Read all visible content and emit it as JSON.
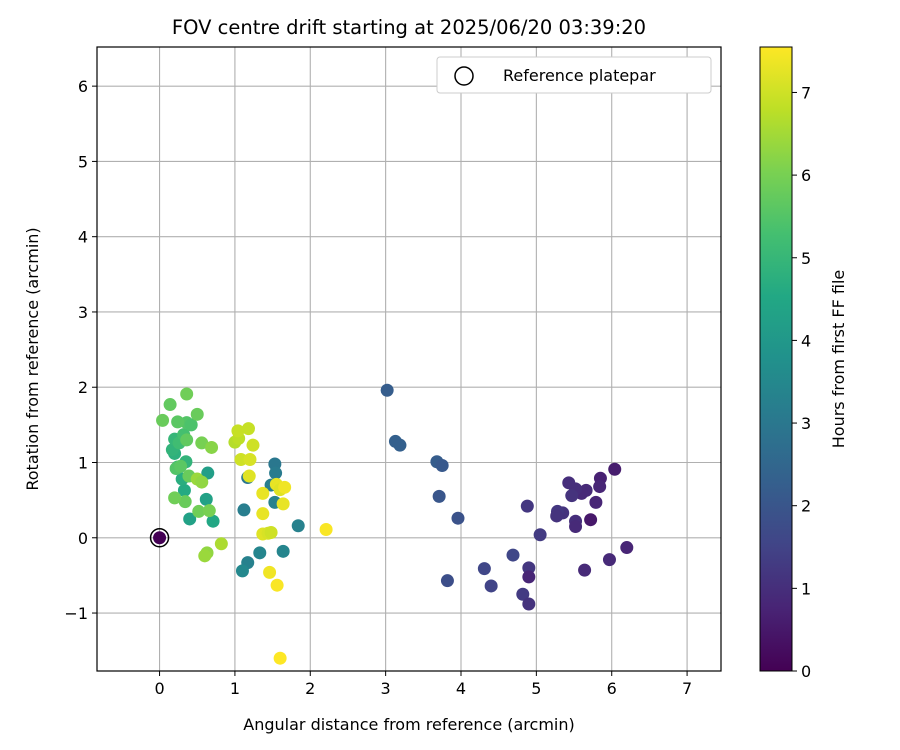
{
  "chart_data": {
    "type": "scatter",
    "title": "FOV centre drift starting at 2025/06/20 03:39:20",
    "xlabel": "Angular distance from reference (arcmin)",
    "ylabel": "Rotation from reference (arcmin)",
    "xlim": [
      -0.83,
      7.45
    ],
    "ylim": [
      -1.77,
      6.52
    ],
    "xticks": [
      0,
      1,
      2,
      3,
      4,
      5,
      6,
      7
    ],
    "yticks": [
      -1,
      0,
      1,
      2,
      3,
      4,
      5,
      6
    ],
    "grid": true,
    "legend": {
      "position": "upper-right",
      "entries": [
        "Reference platepar"
      ]
    },
    "reference_point": {
      "x": 0,
      "y": 0,
      "label": "Reference platepar"
    },
    "colorbar": {
      "label": "Hours from first FF file",
      "min": 0,
      "max": 7.55,
      "ticks": [
        0,
        1,
        2,
        3,
        4,
        5,
        6,
        7
      ],
      "colormap": "viridis"
    },
    "points": [
      {
        "x": 0.0,
        "y": 0.0,
        "c": 0.0
      },
      {
        "x": 6.04,
        "y": 0.91,
        "c": 0.6
      },
      {
        "x": 5.85,
        "y": 0.79,
        "c": 0.7
      },
      {
        "x": 5.84,
        "y": 0.68,
        "c": 0.8
      },
      {
        "x": 5.79,
        "y": 0.47,
        "c": 0.8
      },
      {
        "x": 5.72,
        "y": 0.24,
        "c": 0.5
      },
      {
        "x": 5.66,
        "y": 0.63,
        "c": 0.9
      },
      {
        "x": 5.6,
        "y": 0.59,
        "c": 0.9
      },
      {
        "x": 5.52,
        "y": 0.65,
        "c": 1.0
      },
      {
        "x": 5.47,
        "y": 0.56,
        "c": 1.1
      },
      {
        "x": 5.43,
        "y": 0.73,
        "c": 1.0
      },
      {
        "x": 5.52,
        "y": 0.22,
        "c": 1.0
      },
      {
        "x": 5.52,
        "y": 0.15,
        "c": 0.9
      },
      {
        "x": 5.35,
        "y": 0.33,
        "c": 1.1
      },
      {
        "x": 5.28,
        "y": 0.35,
        "c": 1.2
      },
      {
        "x": 5.27,
        "y": 0.29,
        "c": 1.1
      },
      {
        "x": 4.88,
        "y": 0.42,
        "c": 1.2
      },
      {
        "x": 5.05,
        "y": 0.04,
        "c": 1.3
      },
      {
        "x": 6.2,
        "y": -0.13,
        "c": 0.8
      },
      {
        "x": 5.97,
        "y": -0.29,
        "c": 0.9
      },
      {
        "x": 5.64,
        "y": -0.43,
        "c": 0.9
      },
      {
        "x": 4.9,
        "y": -0.4,
        "c": 1.2
      },
      {
        "x": 4.9,
        "y": -0.52,
        "c": 0.8
      },
      {
        "x": 4.82,
        "y": -0.75,
        "c": 1.3
      },
      {
        "x": 4.9,
        "y": -0.88,
        "c": 1.1
      },
      {
        "x": 4.69,
        "y": -0.23,
        "c": 1.6
      },
      {
        "x": 4.4,
        "y": -0.64,
        "c": 1.5
      },
      {
        "x": 4.31,
        "y": -0.41,
        "c": 1.6
      },
      {
        "x": 3.82,
        "y": -0.57,
        "c": 1.8
      },
      {
        "x": 3.96,
        "y": 0.26,
        "c": 1.9
      },
      {
        "x": 3.71,
        "y": 0.55,
        "c": 2.0
      },
      {
        "x": 3.68,
        "y": 1.01,
        "c": 2.2
      },
      {
        "x": 3.75,
        "y": 0.96,
        "c": 2.1
      },
      {
        "x": 3.13,
        "y": 1.28,
        "c": 2.3
      },
      {
        "x": 3.19,
        "y": 1.23,
        "c": 2.3
      },
      {
        "x": 3.02,
        "y": 1.96,
        "c": 2.2
      },
      {
        "x": 1.84,
        "y": 0.16,
        "c": 3.3
      },
      {
        "x": 1.64,
        "y": -0.18,
        "c": 3.4
      },
      {
        "x": 1.53,
        "y": 0.98,
        "c": 3.0
      },
      {
        "x": 1.54,
        "y": 0.86,
        "c": 3.1
      },
      {
        "x": 1.48,
        "y": 0.7,
        "c": 3.2
      },
      {
        "x": 1.53,
        "y": 0.47,
        "c": 3.3
      },
      {
        "x": 1.12,
        "y": 0.37,
        "c": 3.2
      },
      {
        "x": 1.33,
        "y": -0.2,
        "c": 3.4
      },
      {
        "x": 1.17,
        "y": -0.33,
        "c": 3.3
      },
      {
        "x": 1.1,
        "y": -0.44,
        "c": 3.5
      },
      {
        "x": 1.17,
        "y": 0.8,
        "c": 3.0
      },
      {
        "x": 0.64,
        "y": 0.86,
        "c": 4.2
      },
      {
        "x": 0.62,
        "y": 0.51,
        "c": 4.3
      },
      {
        "x": 0.71,
        "y": 0.22,
        "c": 4.5
      },
      {
        "x": 0.4,
        "y": 0.25,
        "c": 4.3
      },
      {
        "x": 0.33,
        "y": 0.63,
        "c": 4.6
      },
      {
        "x": 0.3,
        "y": 0.78,
        "c": 4.7
      },
      {
        "x": 0.35,
        "y": 1.01,
        "c": 4.9
      },
      {
        "x": 0.24,
        "y": 0.94,
        "c": 5.1
      },
      {
        "x": 0.2,
        "y": 1.12,
        "c": 4.8
      },
      {
        "x": 0.17,
        "y": 1.17,
        "c": 4.9
      },
      {
        "x": 0.2,
        "y": 1.31,
        "c": 5.0
      },
      {
        "x": 0.26,
        "y": 1.26,
        "c": 5.2
      },
      {
        "x": 0.32,
        "y": 1.37,
        "c": 5.3
      },
      {
        "x": 0.36,
        "y": 1.53,
        "c": 5.5
      },
      {
        "x": 0.42,
        "y": 1.5,
        "c": 5.4
      },
      {
        "x": 0.24,
        "y": 1.54,
        "c": 5.6
      },
      {
        "x": 0.04,
        "y": 1.56,
        "c": 5.8
      },
      {
        "x": 0.14,
        "y": 1.77,
        "c": 5.7
      },
      {
        "x": 0.36,
        "y": 1.91,
        "c": 5.9
      },
      {
        "x": 0.5,
        "y": 1.64,
        "c": 5.8
      },
      {
        "x": 0.36,
        "y": 1.3,
        "c": 5.7
      },
      {
        "x": 0.22,
        "y": 0.92,
        "c": 5.5
      },
      {
        "x": 0.28,
        "y": 0.95,
        "c": 5.6
      },
      {
        "x": 0.39,
        "y": 0.82,
        "c": 5.8
      },
      {
        "x": 0.34,
        "y": 0.48,
        "c": 5.8
      },
      {
        "x": 0.2,
        "y": 0.53,
        "c": 5.9
      },
      {
        "x": 0.52,
        "y": 0.35,
        "c": 5.9
      },
      {
        "x": 0.66,
        "y": 0.36,
        "c": 6.0
      },
      {
        "x": 0.56,
        "y": 1.26,
        "c": 6.0
      },
      {
        "x": 0.69,
        "y": 1.2,
        "c": 6.2
      },
      {
        "x": 0.5,
        "y": 0.78,
        "c": 6.4
      },
      {
        "x": 0.56,
        "y": 0.74,
        "c": 6.3
      },
      {
        "x": 0.63,
        "y": -0.2,
        "c": 6.3
      },
      {
        "x": 0.6,
        "y": -0.24,
        "c": 6.4
      },
      {
        "x": 0.82,
        "y": -0.08,
        "c": 6.6
      },
      {
        "x": 1.0,
        "y": 1.27,
        "c": 6.7
      },
      {
        "x": 1.05,
        "y": 1.32,
        "c": 6.8
      },
      {
        "x": 1.04,
        "y": 1.42,
        "c": 6.9
      },
      {
        "x": 1.18,
        "y": 1.45,
        "c": 6.9
      },
      {
        "x": 1.24,
        "y": 1.23,
        "c": 7.0
      },
      {
        "x": 1.08,
        "y": 1.04,
        "c": 7.0
      },
      {
        "x": 1.2,
        "y": 1.04,
        "c": 7.1
      },
      {
        "x": 1.19,
        "y": 0.82,
        "c": 7.2
      },
      {
        "x": 1.37,
        "y": 0.59,
        "c": 7.3
      },
      {
        "x": 1.37,
        "y": 0.32,
        "c": 7.3
      },
      {
        "x": 1.37,
        "y": 0.05,
        "c": 7.2
      },
      {
        "x": 1.44,
        "y": 0.06,
        "c": 7.1
      },
      {
        "x": 1.48,
        "y": 0.07,
        "c": 7.0
      },
      {
        "x": 1.55,
        "y": 0.71,
        "c": 7.3
      },
      {
        "x": 1.6,
        "y": 0.64,
        "c": 7.2
      },
      {
        "x": 1.66,
        "y": 0.67,
        "c": 7.4
      },
      {
        "x": 1.64,
        "y": 0.45,
        "c": 7.3
      },
      {
        "x": 1.46,
        "y": -0.46,
        "c": 7.4
      },
      {
        "x": 1.56,
        "y": -0.63,
        "c": 7.5
      },
      {
        "x": 2.21,
        "y": 0.11,
        "c": 7.5
      },
      {
        "x": 1.6,
        "y": -1.6,
        "c": 7.55
      }
    ]
  }
}
